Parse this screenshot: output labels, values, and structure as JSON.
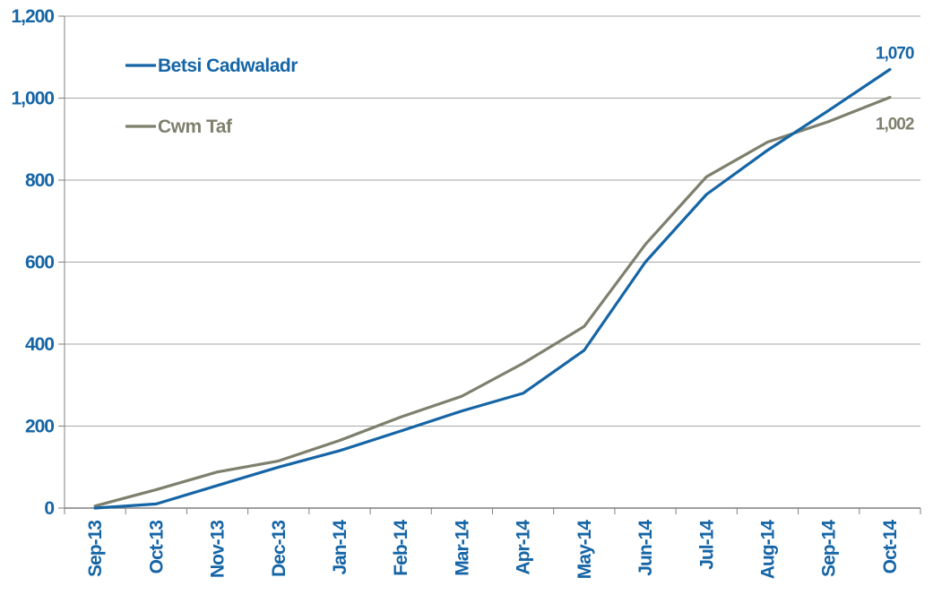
{
  "chart_data": {
    "type": "line",
    "title": "",
    "xlabel": "",
    "ylabel": "",
    "categories": [
      "Sep-13",
      "Oct-13",
      "Nov-13",
      "Dec-13",
      "Jan-14",
      "Feb-14",
      "Mar-14",
      "Apr-14",
      "May-14",
      "Jun-14",
      "Jul-14",
      "Aug-14",
      "Sep-14",
      "Oct-14"
    ],
    "yticks": [
      "0",
      "200",
      "400",
      "600",
      "800",
      "1,000",
      "1,200"
    ],
    "ylim": [
      0,
      1200
    ],
    "grid": true,
    "legend_position": "top-left",
    "series": [
      {
        "name": "Betsi Cadwaladr",
        "color": "#1565A6",
        "values": [
          0,
          10,
          55,
          100,
          140,
          188,
          237,
          280,
          385,
          600,
          765,
          873,
          970,
          1070
        ],
        "end_label": "1,070"
      },
      {
        "name": "Cwm Taf",
        "color": "#7F7F6E",
        "values": [
          5,
          45,
          88,
          115,
          165,
          222,
          273,
          353,
          443,
          643,
          808,
          893,
          943,
          1002
        ],
        "end_label": "1,002"
      }
    ]
  }
}
